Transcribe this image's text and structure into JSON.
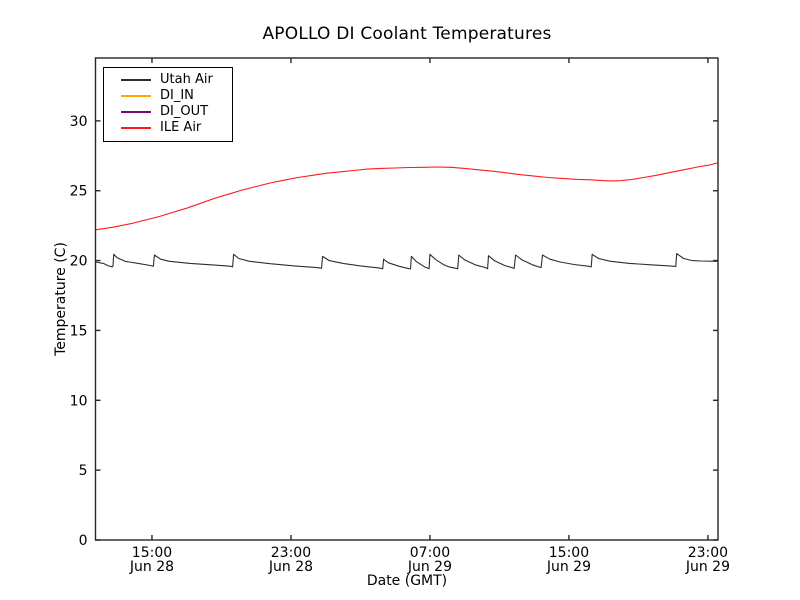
{
  "figure": {
    "title": "APOLLO DI Coolant Temperatures",
    "xlabel": "Date (GMT)",
    "ylabel": "Temperature (C)"
  },
  "chart_data": {
    "type": "line",
    "title": "APOLLO DI Coolant Temperatures",
    "xlabel": "Date (GMT)",
    "ylabel": "Temperature (C)",
    "x_unit": "hours since Jun 28 00:00 GMT",
    "xlim": [
      11.75,
      47.58
    ],
    "ylim": [
      0,
      34.5
    ],
    "grid": false,
    "legend_position": "upper left",
    "background": "#ffffff",
    "axis_color": "#262626",
    "y_ticks": [
      0,
      5,
      10,
      15,
      20,
      25,
      30
    ],
    "x_ticks": [
      {
        "value": 15,
        "time": "15:00",
        "date": "Jun 28"
      },
      {
        "value": 23,
        "time": "23:00",
        "date": "Jun 28"
      },
      {
        "value": 31,
        "time": "07:00",
        "date": "Jun 29"
      },
      {
        "value": 39,
        "time": "15:00",
        "date": "Jun 29"
      },
      {
        "value": 47,
        "time": "23:00",
        "date": "Jun 29"
      }
    ],
    "series": [
      {
        "name": "Utah Air",
        "color": "#2e2e2e",
        "points": [
          [
            11.75,
            19.9
          ],
          [
            12.2,
            19.8
          ],
          [
            12.5,
            19.62
          ],
          [
            12.7,
            19.55
          ],
          [
            12.76,
            19.6
          ],
          [
            12.8,
            20.45
          ],
          [
            13.0,
            20.2
          ],
          [
            13.45,
            19.95
          ],
          [
            14.3,
            19.78
          ],
          [
            14.9,
            19.65
          ],
          [
            15.08,
            19.6
          ],
          [
            15.14,
            20.4
          ],
          [
            15.5,
            20.1
          ],
          [
            16.0,
            19.95
          ],
          [
            17.2,
            19.8
          ],
          [
            18.6,
            19.68
          ],
          [
            19.5,
            19.6
          ],
          [
            19.64,
            19.55
          ],
          [
            19.7,
            20.45
          ],
          [
            20.0,
            20.15
          ],
          [
            20.6,
            19.95
          ],
          [
            21.8,
            19.78
          ],
          [
            23.2,
            19.62
          ],
          [
            24.5,
            19.5
          ],
          [
            24.76,
            19.45
          ],
          [
            24.82,
            20.3
          ],
          [
            25.2,
            20.0
          ],
          [
            26.0,
            19.8
          ],
          [
            27.0,
            19.62
          ],
          [
            28.0,
            19.48
          ],
          [
            28.28,
            19.42
          ],
          [
            28.33,
            20.1
          ],
          [
            28.6,
            19.85
          ],
          [
            29.2,
            19.6
          ],
          [
            29.7,
            19.45
          ],
          [
            29.88,
            19.4
          ],
          [
            29.93,
            20.3
          ],
          [
            30.2,
            19.95
          ],
          [
            30.7,
            19.55
          ],
          [
            30.95,
            19.42
          ],
          [
            31.0,
            20.45
          ],
          [
            31.3,
            20.1
          ],
          [
            31.8,
            19.7
          ],
          [
            32.1,
            19.55
          ],
          [
            32.6,
            19.42
          ],
          [
            32.66,
            20.4
          ],
          [
            33.0,
            20.05
          ],
          [
            33.6,
            19.7
          ],
          [
            34.2,
            19.5
          ],
          [
            34.32,
            19.42
          ],
          [
            34.37,
            20.35
          ],
          [
            34.7,
            20.0
          ],
          [
            35.3,
            19.65
          ],
          [
            35.85,
            19.45
          ],
          [
            35.93,
            20.4
          ],
          [
            36.3,
            20.05
          ],
          [
            36.9,
            19.7
          ],
          [
            37.4,
            19.5
          ],
          [
            37.48,
            20.4
          ],
          [
            37.9,
            20.1
          ],
          [
            38.5,
            19.9
          ],
          [
            39.3,
            19.72
          ],
          [
            40.1,
            19.6
          ],
          [
            40.28,
            19.55
          ],
          [
            40.34,
            20.45
          ],
          [
            40.7,
            20.15
          ],
          [
            41.4,
            19.95
          ],
          [
            42.5,
            19.8
          ],
          [
            43.7,
            19.7
          ],
          [
            44.8,
            19.62
          ],
          [
            45.15,
            19.58
          ],
          [
            45.2,
            20.5
          ],
          [
            45.6,
            20.15
          ],
          [
            46.1,
            20.0
          ],
          [
            46.6,
            19.97
          ],
          [
            47.57,
            19.95
          ]
        ]
      },
      {
        "name": "DI_IN",
        "color": "#ffa500",
        "points": []
      },
      {
        "name": "DI_OUT",
        "color": "#800080",
        "points": []
      },
      {
        "name": "ILE Air",
        "color": "#ff1a1a",
        "points": [
          [
            11.75,
            22.2
          ],
          [
            12.3,
            22.3
          ],
          [
            13.0,
            22.45
          ],
          [
            13.8,
            22.65
          ],
          [
            14.6,
            22.9
          ],
          [
            15.4,
            23.15
          ],
          [
            16.2,
            23.45
          ],
          [
            17.0,
            23.75
          ],
          [
            17.8,
            24.1
          ],
          [
            18.6,
            24.45
          ],
          [
            19.4,
            24.75
          ],
          [
            20.2,
            25.05
          ],
          [
            21.0,
            25.3
          ],
          [
            21.8,
            25.55
          ],
          [
            22.6,
            25.75
          ],
          [
            23.4,
            25.95
          ],
          [
            24.2,
            26.1
          ],
          [
            25.0,
            26.25
          ],
          [
            25.8,
            26.35
          ],
          [
            26.6,
            26.45
          ],
          [
            27.4,
            26.55
          ],
          [
            28.2,
            26.6
          ],
          [
            29.0,
            26.63
          ],
          [
            29.8,
            26.66
          ],
          [
            30.6,
            26.68
          ],
          [
            31.4,
            26.7
          ],
          [
            32.2,
            26.68
          ],
          [
            33.0,
            26.6
          ],
          [
            33.8,
            26.5
          ],
          [
            34.6,
            26.4
          ],
          [
            35.4,
            26.28
          ],
          [
            36.2,
            26.15
          ],
          [
            37.0,
            26.05
          ],
          [
            37.8,
            25.95
          ],
          [
            38.6,
            25.88
          ],
          [
            39.4,
            25.82
          ],
          [
            40.2,
            25.78
          ],
          [
            41.0,
            25.72
          ],
          [
            41.5,
            25.7
          ],
          [
            42.0,
            25.72
          ],
          [
            42.6,
            25.8
          ],
          [
            43.3,
            25.95
          ],
          [
            44.0,
            26.1
          ],
          [
            44.8,
            26.3
          ],
          [
            45.6,
            26.5
          ],
          [
            46.4,
            26.7
          ],
          [
            47.1,
            26.85
          ],
          [
            47.57,
            27.0
          ]
        ]
      }
    ]
  }
}
